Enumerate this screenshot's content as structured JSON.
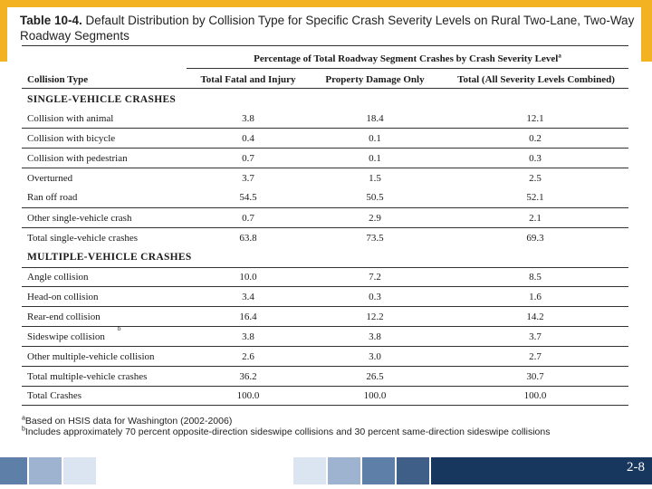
{
  "title": {
    "number": "Table 10-4.",
    "text": "Default Distribution by Collision Type for Specific Crash Severity Levels on Rural Two-Lane, Two-Way Roadway Segments"
  },
  "header": {
    "group": "Percentage of Total Roadway Segment Crashes by Crash Severity Level",
    "group_note": "a",
    "col1": "Collision Type",
    "col2": "Total Fatal and Injury",
    "col3": "Property Damage Only",
    "col4": "Total (All Severity Levels Combined)"
  },
  "sections": {
    "single": "SINGLE-VEHICLE CRASHES",
    "multiple": "MULTIPLE-VEHICLE CRASHES"
  },
  "rows": [
    {
      "type": "Collision with animal",
      "fi": "3.8",
      "pdo": "18.4",
      "total": "12.1"
    },
    {
      "type": "Collision with bicycle",
      "fi": "0.4",
      "pdo": "0.1",
      "total": "0.2"
    },
    {
      "type": "Collision with pedestrian",
      "fi": "0.7",
      "pdo": "0.1",
      "total": "0.3"
    },
    {
      "type": "Overturned",
      "fi": "3.7",
      "pdo": "1.5",
      "total": "2.5"
    },
    {
      "type": "Ran off road",
      "fi": "54.5",
      "pdo": "50.5",
      "total": "52.1"
    },
    {
      "type": "Other single-vehicle crash",
      "fi": "0.7",
      "pdo": "2.9",
      "total": "2.1"
    },
    {
      "type": "Total single-vehicle crashes",
      "fi": "63.8",
      "pdo": "73.5",
      "total": "69.3"
    },
    {
      "type": "Angle collision",
      "fi": "10.0",
      "pdo": "7.2",
      "total": "8.5"
    },
    {
      "type": "Head-on collision",
      "fi": "3.4",
      "pdo": "0.3",
      "total": "1.6"
    },
    {
      "type": "Rear-end collision",
      "fi": "16.4",
      "pdo": "12.2",
      "total": "14.2"
    },
    {
      "type": "Sideswipe collision",
      "note": "b",
      "fi": "3.8",
      "pdo": "3.8",
      "total": "3.7"
    },
    {
      "type": "Other multiple-vehicle collision",
      "fi": "2.6",
      "pdo": "3.0",
      "total": "2.7"
    },
    {
      "type": "Total multiple-vehicle crashes",
      "fi": "36.2",
      "pdo": "26.5",
      "total": "30.7"
    },
    {
      "type": "Total Crashes",
      "fi": "100.0",
      "pdo": "100.0",
      "total": "100.0"
    }
  ],
  "footnotes": {
    "a_mark": "a",
    "a_text": "Based on HSIS data for Washington (2002-2006)",
    "b_mark": "b",
    "b_text": "Includes approximately 70 percent opposite-direction sideswipe collisions and 30 percent same-direction sideswipe collisions"
  },
  "page_number": "2-8",
  "colors": {
    "top_band": "#f3b221",
    "navy": "#17375e"
  }
}
